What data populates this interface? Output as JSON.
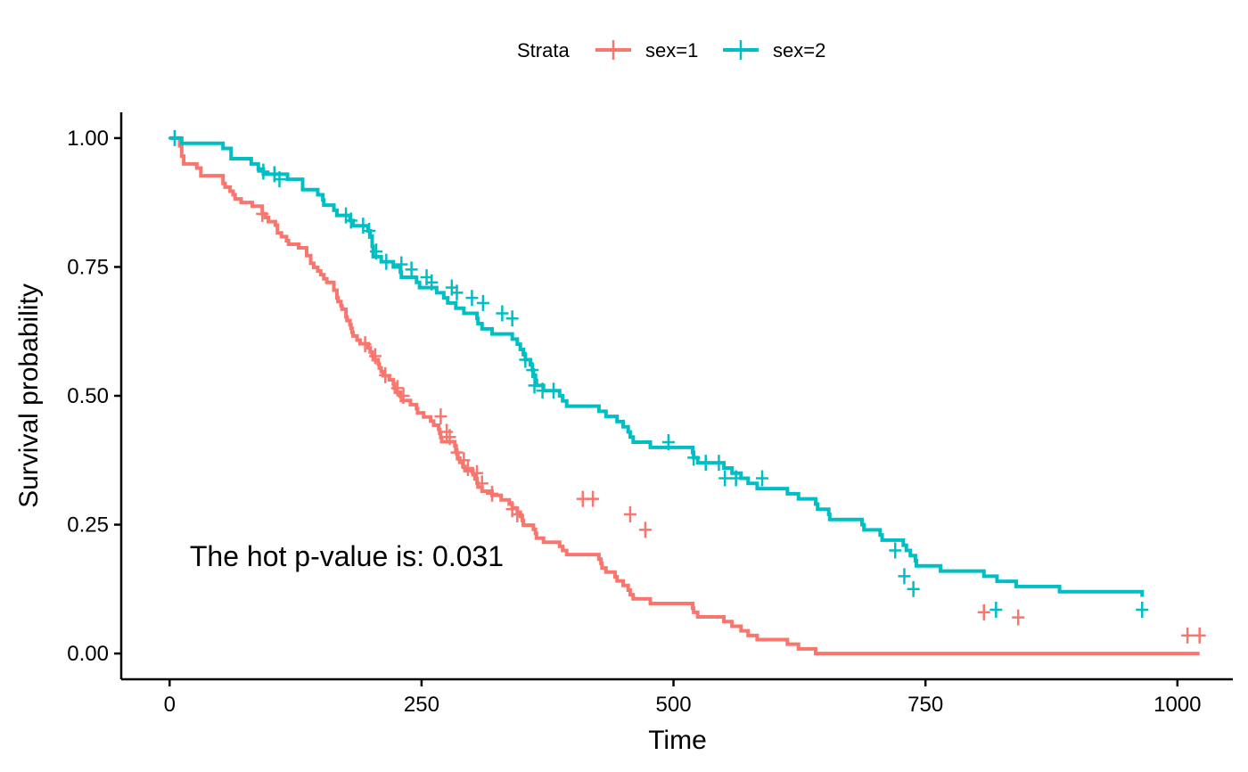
{
  "chart_data": {
    "type": "line",
    "subtype": "kaplan-meier step",
    "xlabel": "Time",
    "ylabel": "Survival probability",
    "xlim": [
      -48,
      1055
    ],
    "ylim": [
      -0.05,
      1.05
    ],
    "x_ticks": [
      0,
      250,
      500,
      750,
      1000
    ],
    "x_tick_labels": [
      "0",
      "250",
      "500",
      "750",
      "1000"
    ],
    "y_ticks": [
      0,
      0.25,
      0.5,
      0.75,
      1.0
    ],
    "y_tick_labels": [
      "0.00",
      "0.25",
      "0.50",
      "0.75",
      "1.00"
    ],
    "grid": false,
    "legend": {
      "title": "Strata",
      "position": "top"
    },
    "annotation": {
      "text": "The hot p-value is: 0.031",
      "x": 20,
      "y": 0.19
    },
    "series": [
      {
        "name": "sex=1",
        "color": "#F8766D",
        "steps": [
          [
            0,
            1.0
          ],
          [
            10,
            0.985
          ],
          [
            12,
            0.965
          ],
          [
            14,
            0.95
          ],
          [
            27,
            0.942
          ],
          [
            31,
            0.927
          ],
          [
            53,
            0.912
          ],
          [
            55,
            0.905
          ],
          [
            60,
            0.897
          ],
          [
            63,
            0.89
          ],
          [
            65,
            0.882
          ],
          [
            71,
            0.875
          ],
          [
            82,
            0.868
          ],
          [
            92,
            0.853
          ],
          [
            95,
            0.846
          ],
          [
            98,
            0.838
          ],
          [
            105,
            0.831
          ],
          [
            107,
            0.816
          ],
          [
            111,
            0.809
          ],
          [
            116,
            0.801
          ],
          [
            118,
            0.794
          ],
          [
            128,
            0.787
          ],
          [
            136,
            0.772
          ],
          [
            140,
            0.757
          ],
          [
            143,
            0.749
          ],
          [
            147,
            0.742
          ],
          [
            150,
            0.735
          ],
          [
            153,
            0.727
          ],
          [
            156,
            0.72
          ],
          [
            163,
            0.705
          ],
          [
            166,
            0.69
          ],
          [
            167,
            0.683
          ],
          [
            170,
            0.675
          ],
          [
            171,
            0.668
          ],
          [
            175,
            0.653
          ],
          [
            176,
            0.646
          ],
          [
            179,
            0.638
          ],
          [
            180,
            0.631
          ],
          [
            181,
            0.623
          ],
          [
            182,
            0.616
          ],
          [
            186,
            0.608
          ],
          [
            189,
            0.601
          ],
          [
            197,
            0.593
          ],
          [
            199,
            0.585
          ],
          [
            201,
            0.578
          ],
          [
            202,
            0.57
          ],
          [
            207,
            0.562
          ],
          [
            208,
            0.554
          ],
          [
            210,
            0.547
          ],
          [
            212,
            0.539
          ],
          [
            218,
            0.531
          ],
          [
            222,
            0.523
          ],
          [
            223,
            0.515
          ],
          [
            224,
            0.507
          ],
          [
            229,
            0.499
          ],
          [
            230,
            0.491
          ],
          [
            239,
            0.483
          ],
          [
            245,
            0.475
          ],
          [
            246,
            0.467
          ],
          [
            252,
            0.459
          ],
          [
            259,
            0.451
          ],
          [
            262,
            0.443
          ],
          [
            267,
            0.435
          ],
          [
            268,
            0.427
          ],
          [
            269,
            0.419
          ],
          [
            270,
            0.411
          ],
          [
            283,
            0.403
          ],
          [
            284,
            0.395
          ],
          [
            285,
            0.387
          ],
          [
            286,
            0.379
          ],
          [
            288,
            0.371
          ],
          [
            291,
            0.363
          ],
          [
            293,
            0.355
          ],
          [
            301,
            0.347
          ],
          [
            303,
            0.339
          ],
          [
            305,
            0.331
          ],
          [
            306,
            0.323
          ],
          [
            310,
            0.315
          ],
          [
            320,
            0.307
          ],
          [
            329,
            0.298
          ],
          [
            337,
            0.29
          ],
          [
            340,
            0.282
          ],
          [
            345,
            0.274
          ],
          [
            348,
            0.266
          ],
          [
            350,
            0.258
          ],
          [
            351,
            0.249
          ],
          [
            361,
            0.241
          ],
          [
            363,
            0.233
          ],
          [
            364,
            0.224
          ],
          [
            371,
            0.216
          ],
          [
            387,
            0.208
          ],
          [
            390,
            0.2
          ],
          [
            394,
            0.192
          ],
          [
            426,
            0.183
          ],
          [
            428,
            0.175
          ],
          [
            429,
            0.166
          ],
          [
            433,
            0.158
          ],
          [
            442,
            0.149
          ],
          [
            444,
            0.141
          ],
          [
            450,
            0.132
          ],
          [
            455,
            0.123
          ],
          [
            457,
            0.114
          ],
          [
            460,
            0.106
          ],
          [
            477,
            0.097
          ],
          [
            519,
            0.088
          ],
          [
            520,
            0.08
          ],
          [
            524,
            0.071
          ],
          [
            550,
            0.062
          ],
          [
            558,
            0.053
          ],
          [
            567,
            0.044
          ],
          [
            574,
            0.035
          ],
          [
            583,
            0.027
          ],
          [
            613,
            0.018
          ],
          [
            624,
            0.009
          ],
          [
            641,
            0.0
          ]
        ],
        "censored": [
          [
            92,
            0.853
          ],
          [
            194,
            0.6
          ],
          [
            204,
            0.577
          ],
          [
            214,
            0.54
          ],
          [
            226,
            0.515
          ],
          [
            232,
            0.5
          ],
          [
            269,
            0.46
          ],
          [
            275,
            0.43
          ],
          [
            278,
            0.42
          ],
          [
            285,
            0.39
          ],
          [
            292,
            0.375
          ],
          [
            296,
            0.36
          ],
          [
            305,
            0.35
          ],
          [
            310,
            0.33
          ],
          [
            320,
            0.31
          ],
          [
            340,
            0.28
          ],
          [
            345,
            0.27
          ],
          [
            410,
            0.3
          ],
          [
            420,
            0.3
          ],
          [
            457,
            0.27
          ],
          [
            472,
            0.24
          ],
          [
            808,
            0.08
          ],
          [
            842,
            0.07
          ],
          [
            1010,
            0.035
          ],
          [
            1022,
            0.035
          ]
        ]
      },
      {
        "name": "sex=2",
        "color": "#00BFC4",
        "steps": [
          [
            0,
            1.0
          ],
          [
            12,
            0.99
          ],
          [
            53,
            0.98
          ],
          [
            61,
            0.96
          ],
          [
            81,
            0.95
          ],
          [
            88,
            0.94
          ],
          [
            93,
            0.93
          ],
          [
            117,
            0.92
          ],
          [
            132,
            0.9
          ],
          [
            147,
            0.89
          ],
          [
            152,
            0.88
          ],
          [
            153,
            0.87
          ],
          [
            163,
            0.86
          ],
          [
            166,
            0.85
          ],
          [
            179,
            0.84
          ],
          [
            182,
            0.83
          ],
          [
            197,
            0.82
          ],
          [
            199,
            0.81
          ],
          [
            201,
            0.79
          ],
          [
            202,
            0.77
          ],
          [
            210,
            0.76
          ],
          [
            222,
            0.75
          ],
          [
            229,
            0.74
          ],
          [
            230,
            0.73
          ],
          [
            245,
            0.72
          ],
          [
            248,
            0.71
          ],
          [
            265,
            0.7
          ],
          [
            272,
            0.69
          ],
          [
            276,
            0.68
          ],
          [
            284,
            0.67
          ],
          [
            292,
            0.66
          ],
          [
            305,
            0.65
          ],
          [
            306,
            0.64
          ],
          [
            310,
            0.63
          ],
          [
            320,
            0.62
          ],
          [
            340,
            0.61
          ],
          [
            345,
            0.6
          ],
          [
            348,
            0.59
          ],
          [
            351,
            0.58
          ],
          [
            353,
            0.57
          ],
          [
            358,
            0.56
          ],
          [
            360,
            0.55
          ],
          [
            361,
            0.54
          ],
          [
            363,
            0.53
          ],
          [
            364,
            0.52
          ],
          [
            371,
            0.51
          ],
          [
            387,
            0.5
          ],
          [
            390,
            0.49
          ],
          [
            394,
            0.48
          ],
          [
            426,
            0.47
          ],
          [
            433,
            0.46
          ],
          [
            444,
            0.45
          ],
          [
            450,
            0.44
          ],
          [
            455,
            0.43
          ],
          [
            457,
            0.42
          ],
          [
            460,
            0.41
          ],
          [
            477,
            0.4
          ],
          [
            519,
            0.39
          ],
          [
            520,
            0.38
          ],
          [
            524,
            0.37
          ],
          [
            550,
            0.36
          ],
          [
            558,
            0.35
          ],
          [
            567,
            0.34
          ],
          [
            574,
            0.33
          ],
          [
            583,
            0.32
          ],
          [
            613,
            0.31
          ],
          [
            624,
            0.3
          ],
          [
            641,
            0.29
          ],
          [
            643,
            0.28
          ],
          [
            654,
            0.27
          ],
          [
            655,
            0.26
          ],
          [
            687,
            0.25
          ],
          [
            689,
            0.24
          ],
          [
            705,
            0.23
          ],
          [
            707,
            0.22
          ],
          [
            728,
            0.21
          ],
          [
            731,
            0.2
          ],
          [
            735,
            0.19
          ],
          [
            740,
            0.18
          ],
          [
            741,
            0.17
          ],
          [
            765,
            0.16
          ],
          [
            808,
            0.15
          ],
          [
            821,
            0.14
          ],
          [
            840,
            0.13
          ],
          [
            883,
            0.12
          ],
          [
            965,
            0.11
          ]
        ],
        "censored": [
          [
            5,
            1.0
          ],
          [
            93,
            0.935
          ],
          [
            104,
            0.93
          ],
          [
            109,
            0.92
          ],
          [
            175,
            0.85
          ],
          [
            180,
            0.84
          ],
          [
            192,
            0.83
          ],
          [
            198,
            0.82
          ],
          [
            205,
            0.78
          ],
          [
            215,
            0.76
          ],
          [
            230,
            0.755
          ],
          [
            240,
            0.745
          ],
          [
            255,
            0.73
          ],
          [
            260,
            0.72
          ],
          [
            280,
            0.71
          ],
          [
            285,
            0.7
          ],
          [
            300,
            0.69
          ],
          [
            311,
            0.68
          ],
          [
            330,
            0.66
          ],
          [
            340,
            0.65
          ],
          [
            353,
            0.57
          ],
          [
            360,
            0.55
          ],
          [
            362,
            0.52
          ],
          [
            370,
            0.51
          ],
          [
            381,
            0.51
          ],
          [
            495,
            0.41
          ],
          [
            520,
            0.38
          ],
          [
            532,
            0.37
          ],
          [
            545,
            0.37
          ],
          [
            551,
            0.34
          ],
          [
            562,
            0.34
          ],
          [
            588,
            0.34
          ],
          [
            720,
            0.2
          ],
          [
            729,
            0.15
          ],
          [
            738,
            0.125
          ],
          [
            820,
            0.085
          ],
          [
            965,
            0.085
          ]
        ]
      }
    ]
  }
}
